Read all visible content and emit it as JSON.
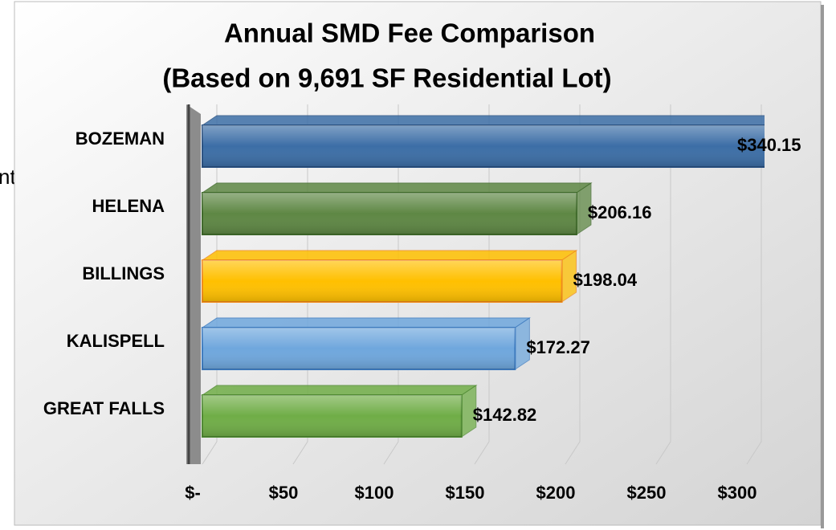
{
  "background_text": "nt",
  "chart_data": {
    "type": "bar",
    "orientation": "horizontal",
    "title": "Annual SMD Fee Comparison",
    "subtitle": "(Based on 9,691 SF Residential Lot)",
    "categories": [
      "BOZEMAN",
      "HELENA",
      "BILLINGS",
      "KALISPELL",
      "GREAT FALLS"
    ],
    "values": [
      340.15,
      206.16,
      198.04,
      172.27,
      142.82
    ],
    "value_labels": [
      "$340.15",
      "$206.16",
      "$198.04",
      "$172.27",
      "$142.82"
    ],
    "colors": [
      "#3c6ea6",
      "#5e8744",
      "#ffc000",
      "#6fa7dd",
      "#70ad47"
    ],
    "edge_colors": [
      "#2a5283",
      "#3f6a2a",
      "#f08c1a",
      "#3e7cc0",
      "#4f8a32"
    ],
    "xlim": [
      0,
      300
    ],
    "xticks": [
      {
        "value": 0,
        "label": "$-"
      },
      {
        "value": 50,
        "label": "$50"
      },
      {
        "value": 100,
        "label": "$100"
      },
      {
        "value": 150,
        "label": "$150"
      },
      {
        "value": 200,
        "label": "$200"
      },
      {
        "value": 250,
        "label": "$250"
      },
      {
        "value": 300,
        "label": "$300"
      }
    ],
    "grid": true
  }
}
